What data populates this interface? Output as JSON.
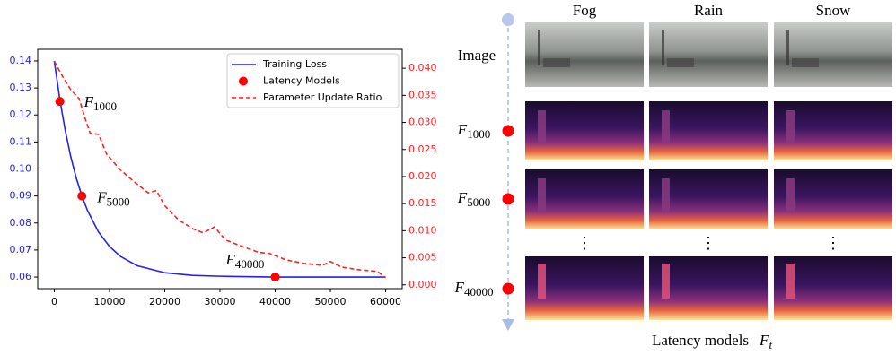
{
  "chart_data": {
    "type": "line",
    "xlim": [
      -3000,
      63000
    ],
    "xticks": [
      0,
      10000,
      20000,
      30000,
      40000,
      50000,
      60000
    ],
    "ylim": [
      0.0557,
      0.1443
    ],
    "yticks": [
      0.06,
      0.07,
      0.08,
      0.09,
      {
        "value": 0.1,
        "label": "0.10"
      },
      0.11,
      0.12,
      0.13,
      0.14
    ],
    "y2lim": [
      -0.0007,
      0.0435
    ],
    "y2ticks": [
      {
        "value": 0,
        "label": "0.000"
      },
      {
        "value": 0.005,
        "label": "0.005"
      },
      {
        "value": 0.01,
        "label": "0.010"
      },
      {
        "value": 0.015,
        "label": "0.015"
      },
      {
        "value": 0.02,
        "label": "0.020"
      },
      {
        "value": 0.025,
        "label": "0.025"
      },
      {
        "value": 0.03,
        "label": "0.030"
      },
      {
        "value": 0.035,
        "label": "0.035"
      },
      {
        "value": 0.04,
        "label": "0.040"
      }
    ],
    "legend": "upper right",
    "series": [
      {
        "name": "Training Loss",
        "color": "#2222ee",
        "kind": "line",
        "x": [
          0,
          1000,
          2000,
          3000,
          4000,
          5000,
          6000,
          8000,
          10000,
          12000,
          15000,
          20000,
          25000,
          30000,
          40000,
          50000,
          60000
        ],
        "values": [
          0.14,
          0.1258,
          0.1141,
          0.1044,
          0.0965,
          0.09,
          0.0847,
          0.0767,
          0.0713,
          0.0676,
          0.0642,
          0.0616,
          0.0606,
          0.0603,
          0.06,
          0.06,
          0.06
        ]
      },
      {
        "name": "Latency Models",
        "color": "#ff0000",
        "kind": "scatter",
        "x": [
          1000,
          5000,
          40000
        ],
        "values": [
          0.125,
          0.09,
          0.06
        ],
        "point_labels": [
          {
            "base": "F",
            "sub": "1000"
          },
          {
            "base": "F",
            "sub": "5000"
          },
          {
            "base": "F",
            "sub": "40000"
          }
        ]
      },
      {
        "name": "Parameter Update Ratio",
        "color": "#ff2222",
        "kind": "dashed",
        "axis": "y2",
        "x": [
          0,
          1500,
          3000,
          4500,
          5500,
          6500,
          8000,
          9500,
          12000,
          14500,
          17000,
          18500,
          20000,
          22500,
          25000,
          27000,
          29000,
          31000,
          34000,
          37000,
          39000,
          42000,
          45000,
          48500,
          50000,
          52000,
          55000,
          58500,
          60000
        ],
        "values": [
          0.0413,
          0.0385,
          0.036,
          0.0344,
          0.031,
          0.028,
          0.0278,
          0.0241,
          0.0212,
          0.019,
          0.017,
          0.0174,
          0.0146,
          0.012,
          0.0104,
          0.0096,
          0.0107,
          0.0083,
          0.0071,
          0.006,
          0.0058,
          0.0046,
          0.004,
          0.0036,
          0.0043,
          0.0033,
          0.0028,
          0.0025,
          0.0013
        ]
      }
    ]
  },
  "panel": {
    "columns": [
      "Fog",
      "Rain",
      "Snow"
    ],
    "rows": [
      {
        "base": "Image"
      },
      {
        "base": "F",
        "sub": "1000"
      },
      {
        "base": "F",
        "sub": "5000"
      },
      {
        "base": "F",
        "sub": "40000"
      }
    ],
    "ellipsis": "⋮",
    "caption": {
      "text": "Latency models",
      "base": "F",
      "sub": "t"
    }
  }
}
